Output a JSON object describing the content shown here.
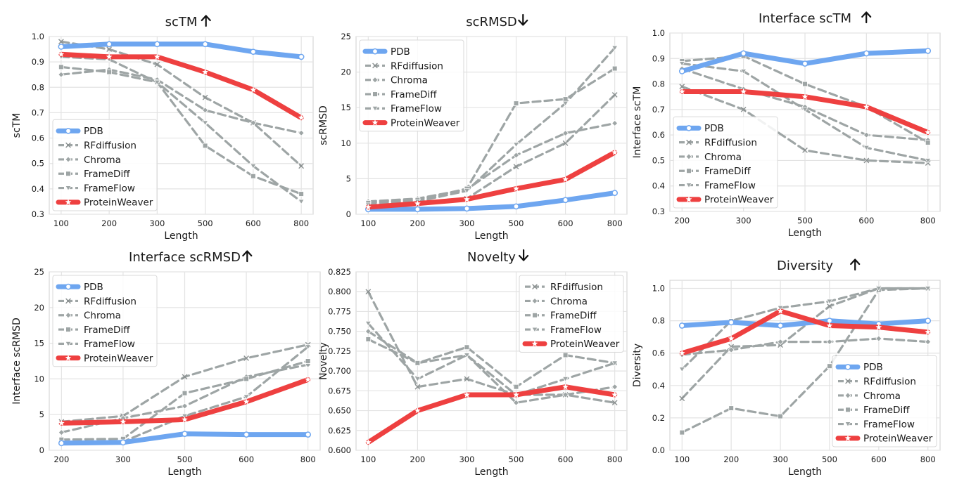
{
  "colors": {
    "PDB": "#6ea6f0",
    "ProteinWeaver": "#ee4040",
    "baseline": "#9ea5a5"
  },
  "legend_names": [
    "PDB",
    "RFdiffusion",
    "Chroma",
    "FrameDiff",
    "FrameFlow",
    "ProteinWeaver"
  ],
  "chart_data": [
    {
      "type": "line",
      "title": "scTM",
      "arrow": "up",
      "xlabel": "Length",
      "ylabel": "scTM",
      "categories": [
        "100",
        "200",
        "300",
        "500",
        "600",
        "800"
      ],
      "ylim": [
        0.3,
        1.0
      ],
      "yticks": [
        "0.3",
        "0.4",
        "0.5",
        "0.6",
        "0.7",
        "0.8",
        "0.9",
        "1.0"
      ],
      "legend": "lower-left",
      "series": [
        {
          "name": "PDB",
          "values": [
            0.96,
            0.97,
            0.97,
            0.97,
            0.94,
            0.92
          ]
        },
        {
          "name": "RFdiffusion",
          "values": [
            0.98,
            0.95,
            0.89,
            0.76,
            0.66,
            0.49
          ]
        },
        {
          "name": "Chroma",
          "values": [
            0.85,
            0.87,
            0.83,
            0.71,
            0.66,
            0.62
          ]
        },
        {
          "name": "FrameDiff",
          "values": [
            0.88,
            0.86,
            0.82,
            0.57,
            0.45,
            0.38
          ]
        },
        {
          "name": "FrameFlow",
          "values": [
            0.92,
            0.91,
            0.82,
            0.66,
            0.49,
            0.35
          ]
        },
        {
          "name": "ProteinWeaver",
          "values": [
            0.93,
            0.92,
            0.92,
            0.86,
            0.79,
            0.68
          ]
        }
      ]
    },
    {
      "type": "line",
      "title": "scRMSD",
      "arrow": "down",
      "xlabel": "Length",
      "ylabel": "scRMSD",
      "categories": [
        "100",
        "200",
        "300",
        "500",
        "600",
        "800"
      ],
      "ylim": [
        0,
        25
      ],
      "yticks": [
        "0",
        "5",
        "10",
        "15",
        "20",
        "25"
      ],
      "legend": "upper-left",
      "series": [
        {
          "name": "PDB",
          "values": [
            0.7,
            0.7,
            0.8,
            1.1,
            2.0,
            3.0
          ]
        },
        {
          "name": "RFdiffusion",
          "values": [
            1.0,
            1.5,
            2.2,
            6.7,
            10.0,
            16.8
          ]
        },
        {
          "name": "Chroma",
          "values": [
            1.8,
            2.2,
            3.5,
            8.3,
            11.4,
            12.8
          ]
        },
        {
          "name": "FrameDiff",
          "values": [
            1.6,
            2.0,
            3.6,
            15.6,
            16.2,
            20.5
          ]
        },
        {
          "name": "FrameFlow",
          "values": [
            1.3,
            1.8,
            3.3,
            9.8,
            15.6,
            23.4
          ]
        },
        {
          "name": "ProteinWeaver",
          "values": [
            1.0,
            1.5,
            2.1,
            3.6,
            4.9,
            8.7
          ]
        }
      ]
    },
    {
      "type": "line",
      "title": "Interface scTM",
      "arrow": "up",
      "xlabel": "Length",
      "ylabel": "Interface scTM",
      "categories": [
        "200",
        "300",
        "500",
        "600",
        "800"
      ],
      "ylim": [
        0.3,
        1.0
      ],
      "yticks": [
        "0.3",
        "0.4",
        "0.5",
        "0.6",
        "0.7",
        "0.8",
        "0.9",
        "1.0"
      ],
      "legend": "lower-left",
      "series": [
        {
          "name": "PDB",
          "values": [
            0.85,
            0.92,
            0.88,
            0.92,
            0.93
          ]
        },
        {
          "name": "RFdiffusion",
          "values": [
            0.79,
            0.7,
            0.54,
            0.5,
            0.49
          ]
        },
        {
          "name": "Chroma",
          "values": [
            0.86,
            0.78,
            0.71,
            0.6,
            0.58
          ]
        },
        {
          "name": "FrameDiff",
          "values": [
            0.89,
            0.91,
            0.8,
            0.71,
            0.57
          ]
        },
        {
          "name": "FrameFlow",
          "values": [
            0.88,
            0.85,
            0.7,
            0.55,
            0.5
          ]
        },
        {
          "name": "ProteinWeaver",
          "values": [
            0.77,
            0.77,
            0.75,
            0.71,
            0.61
          ]
        }
      ]
    },
    {
      "type": "line",
      "title": "Interface scRMSD",
      "arrow": "up",
      "xlabel": "Length",
      "ylabel": "Interface scRMSD",
      "categories": [
        "200",
        "300",
        "500",
        "600",
        "800"
      ],
      "ylim": [
        0,
        25
      ],
      "yticks": [
        "0",
        "5",
        "10",
        "15",
        "20",
        "25"
      ],
      "legend": "upper-left",
      "series": [
        {
          "name": "PDB",
          "values": [
            1.0,
            1.1,
            2.3,
            2.2,
            2.2
          ]
        },
        {
          "name": "RFdiffusion",
          "values": [
            4.0,
            4.8,
            10.3,
            12.9,
            14.8
          ]
        },
        {
          "name": "Chroma",
          "values": [
            2.5,
            4.5,
            6.2,
            10.3,
            12.0
          ]
        },
        {
          "name": "FrameDiff",
          "values": [
            1.5,
            1.6,
            8.0,
            10.0,
            12.5
          ]
        },
        {
          "name": "FrameFlow",
          "values": [
            1.1,
            1.2,
            4.8,
            7.5,
            14.5
          ]
        },
        {
          "name": "ProteinWeaver",
          "values": [
            3.8,
            4.0,
            4.3,
            6.8,
            9.9
          ]
        }
      ]
    },
    {
      "type": "line",
      "title": "Novelty",
      "arrow": "down",
      "xlabel": "Length",
      "ylabel": "Novelty",
      "categories": [
        "100",
        "200",
        "300",
        "500",
        "600",
        "800"
      ],
      "ylim": [
        0.6,
        0.825
      ],
      "yticks": [
        "0.600",
        "0.625",
        "0.650",
        "0.675",
        "0.700",
        "0.725",
        "0.750",
        "0.775",
        "0.800",
        "0.825"
      ],
      "legend": "upper-right",
      "series": [
        {
          "name": "RFdiffusion",
          "values": [
            0.8,
            0.68,
            0.69,
            0.67,
            0.67,
            0.66
          ]
        },
        {
          "name": "Chroma",
          "values": [
            0.75,
            0.71,
            0.72,
            0.66,
            0.67,
            0.68
          ]
        },
        {
          "name": "FrameDiff",
          "values": [
            0.74,
            0.71,
            0.73,
            0.68,
            0.72,
            0.71
          ]
        },
        {
          "name": "FrameFlow",
          "values": [
            0.76,
            0.69,
            0.72,
            0.67,
            0.69,
            0.71
          ]
        },
        {
          "name": "ProteinWeaver",
          "values": [
            0.61,
            0.65,
            0.67,
            0.67,
            0.68,
            0.67
          ]
        }
      ]
    },
    {
      "type": "line",
      "title": "Diversity",
      "arrow": "up",
      "xlabel": "Length",
      "ylabel": "Diversity",
      "categories": [
        "100",
        "200",
        "300",
        "500",
        "600",
        "800"
      ],
      "ylim": [
        0.0,
        1.05
      ],
      "yticks": [
        "0.0",
        "0.2",
        "0.4",
        "0.6",
        "0.8",
        "1.0"
      ],
      "legend": "lower-right",
      "series": [
        {
          "name": "PDB",
          "values": [
            0.77,
            0.79,
            0.77,
            0.8,
            0.78,
            0.8
          ]
        },
        {
          "name": "RFdiffusion",
          "values": [
            0.32,
            0.64,
            0.65,
            0.89,
            1.0,
            1.0
          ]
        },
        {
          "name": "Chroma",
          "values": [
            0.59,
            0.62,
            0.67,
            0.67,
            0.69,
            0.67
          ]
        },
        {
          "name": "FrameDiff",
          "values": [
            0.11,
            0.26,
            0.21,
            0.52,
            0.99,
            1.0
          ]
        },
        {
          "name": "FrameFlow",
          "values": [
            0.5,
            0.8,
            0.88,
            0.92,
            1.0,
            1.0
          ]
        },
        {
          "name": "ProteinWeaver",
          "values": [
            0.6,
            0.69,
            0.86,
            0.77,
            0.76,
            0.73
          ]
        }
      ]
    }
  ]
}
